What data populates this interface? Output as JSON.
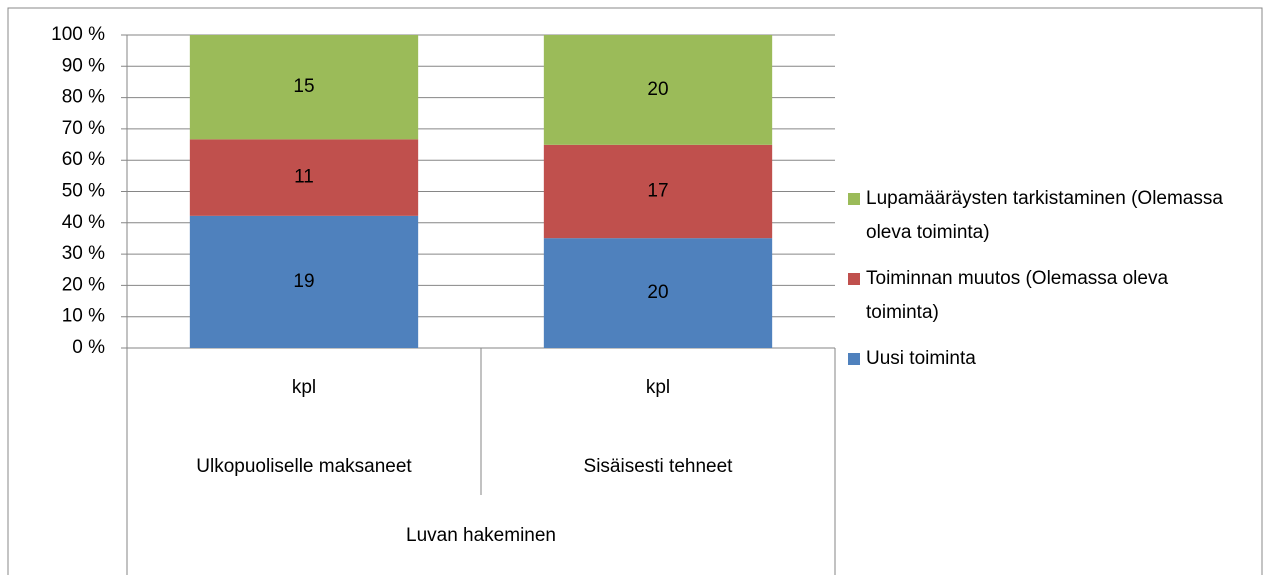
{
  "chart_data": {
    "type": "bar",
    "stacked": "percent",
    "categories": [
      "Ulkopuoliselle maksaneet",
      "Sisäisesti tehneet"
    ],
    "subcategories": [
      "kpl",
      "kpl"
    ],
    "group": "Luvan hakeminen",
    "series": [
      {
        "name": "Uusi toiminta",
        "color": "#4f81bd",
        "values": [
          19,
          20
        ]
      },
      {
        "name": "Toiminnan muutos (Olemassa oleva toiminta)",
        "color": "#c0504d",
        "values": [
          11,
          17
        ]
      },
      {
        "name": "Lupamääräysten tarkistaminen (Olemassa oleva toiminta)",
        "color": "#9bbb59",
        "values": [
          15,
          20
        ]
      }
    ],
    "ylim": [
      0,
      100
    ],
    "yticks": [
      {
        "value": 0,
        "label": "0 %"
      },
      {
        "value": 10,
        "label": "10 %"
      },
      {
        "value": 20,
        "label": "20 %"
      },
      {
        "value": 30,
        "label": "30 %"
      },
      {
        "value": 40,
        "label": "40 %"
      },
      {
        "value": 50,
        "label": "50 %"
      },
      {
        "value": 60,
        "label": "60 %"
      },
      {
        "value": 70,
        "label": "70 %"
      },
      {
        "value": 80,
        "label": "80 %"
      },
      {
        "value": 90,
        "label": "90 %"
      },
      {
        "value": 100,
        "label": "100 %"
      }
    ],
    "grid": true,
    "legend": "right"
  }
}
